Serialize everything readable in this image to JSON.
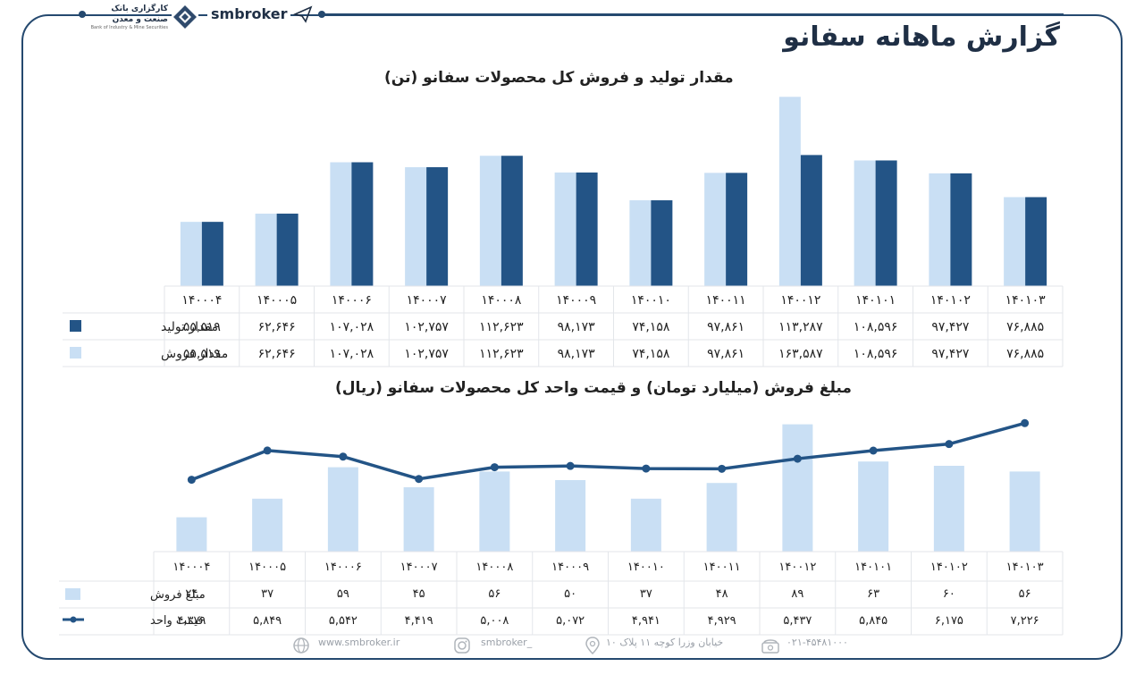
{
  "brand": {
    "name": "smbroker",
    "bank_name": "کارگزاری بانک صنعت و معدن",
    "bank_sub": "Bank of Industry & Mine Securities"
  },
  "page_title": "گزارش ماهانه سفانو",
  "colors": {
    "dark": "#235486",
    "light": "#c9dff4",
    "frame": "#25496f"
  },
  "chart_data": [
    {
      "type": "bar",
      "title": "مقدار تولید و فروش کل محصولات سفانو (تن)",
      "categories": [
        "۱۴۰۰۰۴",
        "۱۴۰۰۰۵",
        "۱۴۰۰۰۶",
        "۱۴۰۰۰۷",
        "۱۴۰۰۰۸",
        "۱۴۰۰۰۹",
        "۱۴۰۰۱۰",
        "۱۴۰۰۱۱",
        "۱۴۰۰۱۲",
        "۱۴۰۱۰۱",
        "۱۴۰۱۰۲",
        "۱۴۰۱۰۳"
      ],
      "series": [
        {
          "name": "مقدار تولید",
          "color": "#235486",
          "values": [
            55519,
            62646,
            107028,
            102757,
            112623,
            98173,
            74158,
            97861,
            113287,
            108596,
            97427,
            76885
          ],
          "labels": [
            "۵۵,۵۱۹",
            "۶۲,۶۴۶",
            "۱۰۷,۰۲۸",
            "۱۰۲,۷۵۷",
            "۱۱۲,۶۲۳",
            "۹۸,۱۷۳",
            "۷۴,۱۵۸",
            "۹۷,۸۶۱",
            "۱۱۳,۲۸۷",
            "۱۰۸,۵۹۶",
            "۹۷,۴۲۷",
            "۷۶,۸۸۵"
          ]
        },
        {
          "name": "مقدار فروش",
          "color": "#c9dff4",
          "values": [
            55519,
            62646,
            107028,
            102757,
            112623,
            98173,
            74158,
            97861,
            163587,
            108596,
            97427,
            76885
          ],
          "labels": [
            "۵۵,۵۱۹",
            "۶۲,۶۴۶",
            "۱۰۷,۰۲۸",
            "۱۰۲,۷۵۷",
            "۱۱۲,۶۲۳",
            "۹۸,۱۷۳",
            "۷۴,۱۵۸",
            "۹۷,۸۶۱",
            "۱۶۳,۵۸۷",
            "۱۰۸,۵۹۶",
            "۹۷,۴۲۷",
            "۷۶,۸۸۵"
          ]
        }
      ],
      "ylim": [
        0,
        170000
      ],
      "grid": false,
      "legend": "table-left"
    },
    {
      "type": "bar",
      "title": "مبلغ فروش (میلیارد تومان) و قیمت واحد کل محصولات سفانو (ریال)",
      "categories": [
        "۱۴۰۰۰۴",
        "۱۴۰۰۰۵",
        "۱۴۰۰۰۶",
        "۱۴۰۰۰۷",
        "۱۴۰۰۰۸",
        "۱۴۰۰۰۹",
        "۱۴۰۰۱۰",
        "۱۴۰۰۱۱",
        "۱۴۰۰۱۲",
        "۱۴۰۱۰۱",
        "۱۴۰۱۰۲",
        "۱۴۰۱۰۳"
      ],
      "series": [
        {
          "name": "مبلغ فروش",
          "type": "bar",
          "color": "#c9dff4",
          "values": [
            24,
            37,
            59,
            45,
            56,
            50,
            37,
            48,
            89,
            63,
            60,
            56
          ],
          "labels": [
            "۲۴",
            "۳۷",
            "۵۹",
            "۴۵",
            "۵۶",
            "۵۰",
            "۳۷",
            "۴۸",
            "۸۹",
            "۶۳",
            "۶۰",
            "۵۶"
          ]
        },
        {
          "name": "قیمت واحد",
          "type": "line",
          "color": "#235486",
          "values": [
            4379,
            5849,
            5542,
            4419,
            5008,
            5072,
            4941,
            4929,
            5437,
            5845,
            6175,
            7226
          ],
          "labels": [
            "۴,۳۷۹",
            "۵,۸۴۹",
            "۵,۵۴۲",
            "۴,۴۱۹",
            "۵,۰۰۸",
            "۵,۰۷۲",
            "۴,۹۴۱",
            "۴,۹۲۹",
            "۵,۴۳۷",
            "۵,۸۴۵",
            "۶,۱۷۵",
            "۷,۲۲۶"
          ]
        }
      ],
      "grid": false,
      "legend": "table-left"
    }
  ],
  "footer": {
    "website": "www.smbroker.ir",
    "instagram": "smbroker_",
    "address": "خیابان وزرا کوچه ۱۱ پلاک ۱۰",
    "phone": "۰۲۱-۴۵۴۸۱۰۰۰"
  }
}
